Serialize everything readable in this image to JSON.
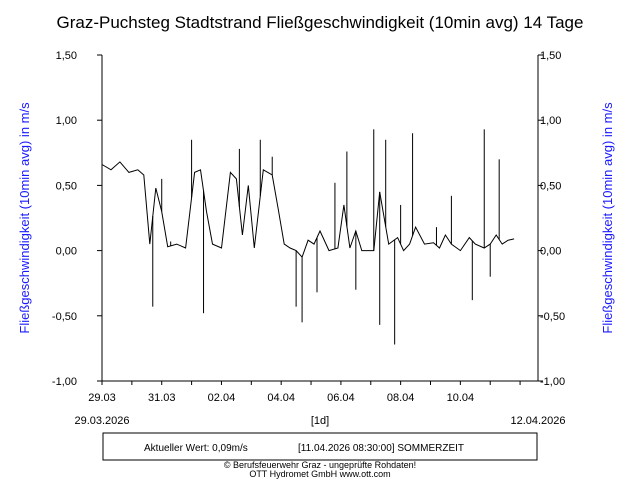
{
  "chart_data": {
    "type": "line",
    "title": "Graz-Puchsteg Stadtstrand Fließgeschwindigkeit (10min avg) 14 Tage",
    "ylabel": "Fließgeschwindigkeit (10min avg) in m/s",
    "xlabel": "[1d]",
    "ylim": [
      -1.0,
      1.5
    ],
    "xlim": [
      0,
      14.6
    ],
    "y_ticks": [
      "-1,00",
      "-0,50",
      "0,00",
      "0,50",
      "1,00",
      "1,50"
    ],
    "y_tick_values": [
      -1.0,
      -0.5,
      0.0,
      0.5,
      1.0,
      1.5
    ],
    "x_ticks": [
      "29.03",
      "31.03",
      "02.04",
      "04.04",
      "06.04",
      "08.04",
      "10.04"
    ],
    "x_tick_values": [
      0,
      2,
      4,
      6,
      8,
      10,
      12
    ],
    "start_label": "29.03.2026",
    "end_label": "12.04.2026",
    "grid": false,
    "series": [
      {
        "color": "#000000",
        "x": [
          0.0,
          0.3,
          0.6,
          0.9,
          1.2,
          1.4,
          1.6,
          1.8,
          2.0,
          2.2,
          2.5,
          2.8,
          3.1,
          3.3,
          3.5,
          3.7,
          4.0,
          4.3,
          4.5,
          4.7,
          4.9,
          5.1,
          5.4,
          5.7,
          5.9,
          6.1,
          6.3,
          6.5,
          6.7,
          6.9,
          7.1,
          7.3,
          7.6,
          7.9,
          8.1,
          8.3,
          8.5,
          8.7,
          8.9,
          9.1,
          9.3,
          9.6,
          9.9,
          10.1,
          10.3,
          10.5,
          10.8,
          11.1,
          11.3,
          11.5,
          11.7,
          12.0,
          12.3,
          12.5,
          12.8,
          13.0,
          13.2,
          13.4,
          13.6,
          13.8
        ],
        "y": [
          0.66,
          0.62,
          0.68,
          0.6,
          0.62,
          0.58,
          0.05,
          0.48,
          0.3,
          0.03,
          0.05,
          0.02,
          0.6,
          0.62,
          0.3,
          0.05,
          0.02,
          0.6,
          0.55,
          0.12,
          0.5,
          0.02,
          0.62,
          0.58,
          0.32,
          0.05,
          0.02,
          0.0,
          -0.05,
          0.08,
          0.05,
          0.15,
          0.0,
          0.02,
          0.35,
          0.02,
          0.15,
          0.0,
          0.0,
          0.0,
          0.45,
          0.05,
          0.1,
          0.0,
          0.05,
          0.18,
          0.05,
          0.06,
          0.02,
          0.12,
          0.05,
          0.0,
          0.1,
          0.05,
          0.02,
          0.05,
          0.12,
          0.05,
          0.08,
          0.09
        ]
      }
    ],
    "spikes": [
      {
        "x": 1.7,
        "y": -0.43
      },
      {
        "x": 2.0,
        "y": 0.55
      },
      {
        "x": 2.3,
        "y": 0.07
      },
      {
        "x": 3.0,
        "y": 0.85
      },
      {
        "x": 3.4,
        "y": -0.48
      },
      {
        "x": 4.6,
        "y": 0.78
      },
      {
        "x": 5.3,
        "y": 0.85
      },
      {
        "x": 5.7,
        "y": 0.72
      },
      {
        "x": 6.5,
        "y": -0.43
      },
      {
        "x": 6.7,
        "y": -0.55
      },
      {
        "x": 7.2,
        "y": -0.32
      },
      {
        "x": 7.8,
        "y": 0.52
      },
      {
        "x": 8.2,
        "y": 0.76
      },
      {
        "x": 8.5,
        "y": -0.3
      },
      {
        "x": 9.1,
        "y": 0.93
      },
      {
        "x": 9.3,
        "y": -0.57
      },
      {
        "x": 9.5,
        "y": 0.85
      },
      {
        "x": 9.8,
        "y": -0.72
      },
      {
        "x": 10.0,
        "y": 0.35
      },
      {
        "x": 10.4,
        "y": 0.9
      },
      {
        "x": 11.2,
        "y": 0.18
      },
      {
        "x": 11.7,
        "y": 0.42
      },
      {
        "x": 12.4,
        "y": -0.38
      },
      {
        "x": 12.8,
        "y": 0.93
      },
      {
        "x": 13.0,
        "y": -0.2
      },
      {
        "x": 13.3,
        "y": 0.7
      }
    ]
  },
  "info_box": {
    "current_value": "Aktueller Wert: 0,09m/s",
    "timestamp": "[11.04.2026 08:30:00] SOMMERZEIT"
  },
  "footer": {
    "line1": "© Berufsfeuerwehr Graz - ungeprüfte Rohdaten!",
    "line2": "OTT Hydromet GmbH    www.ott.com"
  }
}
